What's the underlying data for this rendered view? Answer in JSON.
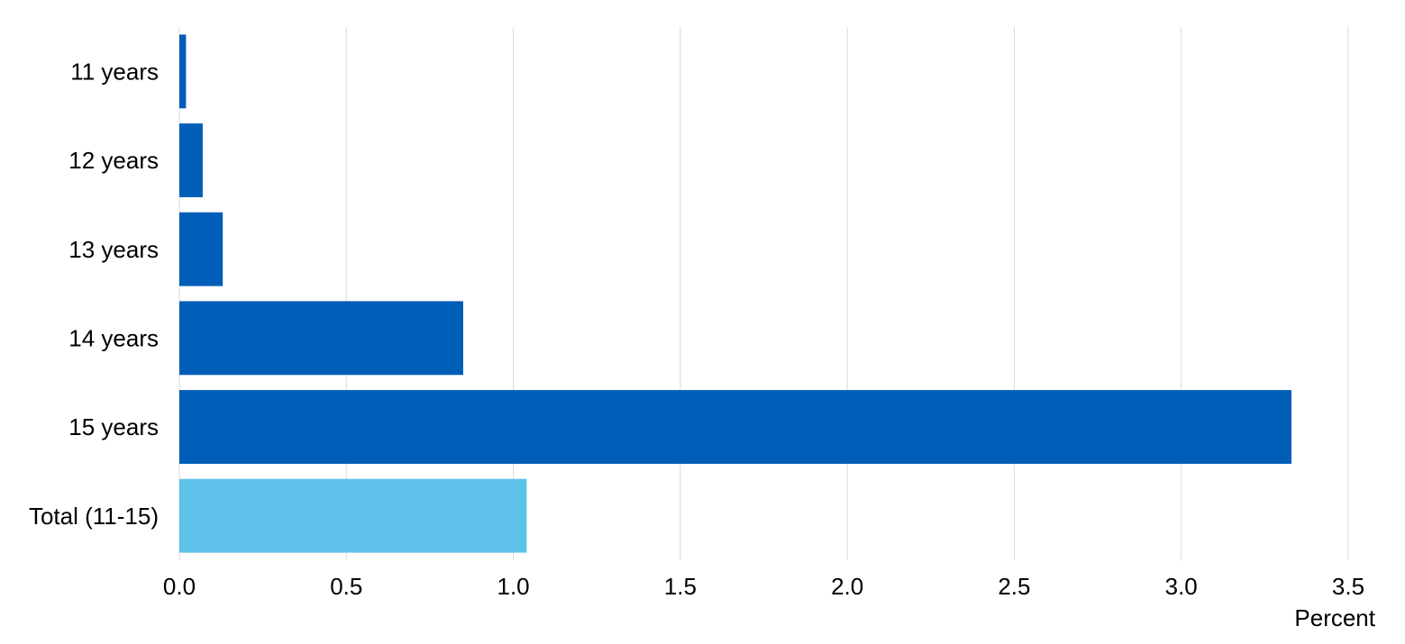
{
  "chart_data": {
    "type": "bar",
    "orientation": "horizontal",
    "categories": [
      "11 years",
      "12 years",
      "13 years",
      "14 years",
      "15 years",
      "Total (11-15)"
    ],
    "values": [
      0.02,
      0.07,
      0.13,
      0.85,
      3.33,
      1.04
    ],
    "bar_colors": [
      "#005EB8",
      "#005EB8",
      "#005EB8",
      "#005EB8",
      "#005EB8",
      "#5EC1EA"
    ],
    "xlim": [
      0,
      3.5
    ],
    "xticks": [
      "0.0",
      "0.5",
      "1.0",
      "1.5",
      "2.0",
      "2.5",
      "3.0",
      "3.5"
    ],
    "xlabel": "Percent",
    "grid": "vertical"
  }
}
